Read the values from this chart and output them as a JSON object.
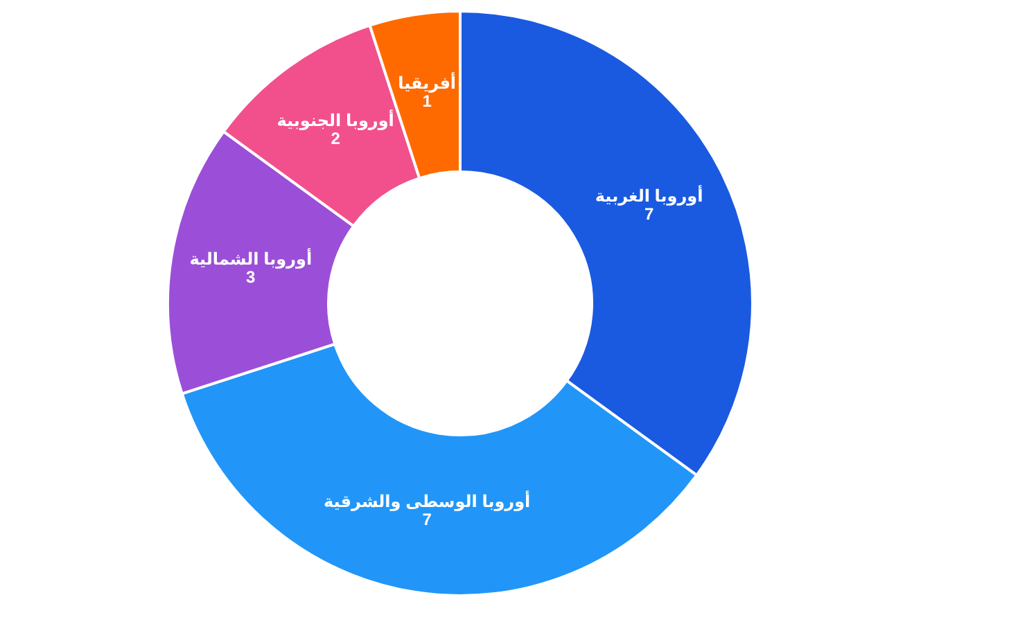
{
  "chart_data": {
    "type": "donut",
    "categories": [
      "أوروبا الغربية",
      "أوروبا الوسطى والشرقية",
      "أوروبا الشمالية",
      "أوروبا الجنوبية",
      "أفريقيا"
    ],
    "values": [
      7,
      7,
      3,
      2,
      1
    ],
    "colors": [
      "#1a5ae0",
      "#2196f8",
      "#9b4fd8",
      "#f2508c",
      "#ff6a00"
    ],
    "data_labels": true
  }
}
